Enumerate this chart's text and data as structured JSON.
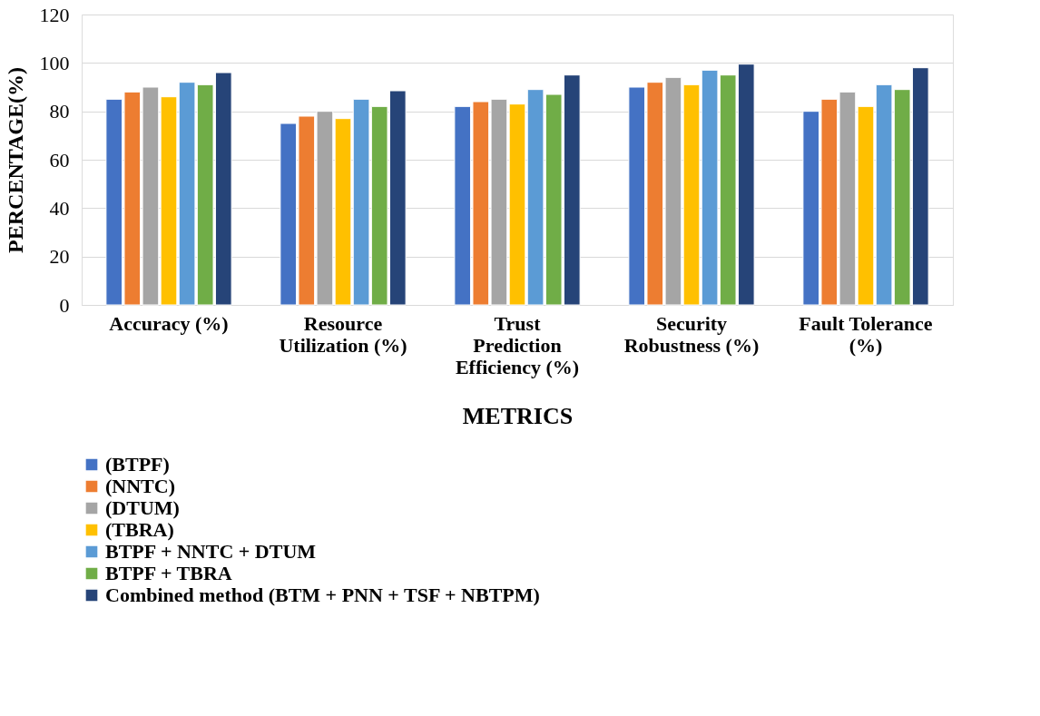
{
  "chart_data": {
    "type": "bar",
    "xlabel": "METRICS",
    "ylabel": "PERCENTAGE(%)",
    "categories": [
      "Accuracy (%)",
      "Resource Utilization (%)",
      "Trust Prediction Efficiency (%)",
      "Security Robustness (%)",
      "Fault Tolerance (%)"
    ],
    "series": [
      {
        "name": "(BTPF)",
        "color": "#4472c4",
        "values": [
          85,
          75,
          82,
          90,
          80
        ]
      },
      {
        "name": "(NNTC)",
        "color": "#ed7d31",
        "values": [
          88,
          78,
          84,
          92,
          85
        ]
      },
      {
        "name": "(DTUM)",
        "color": "#a5a5a5",
        "values": [
          90,
          80,
          85,
          94,
          88
        ]
      },
      {
        "name": "(TBRA)",
        "color": "#ffc000",
        "values": [
          86,
          77,
          83,
          91,
          82
        ]
      },
      {
        "name": "BTPF + NNTC + DTUM",
        "color": "#5b9bd5",
        "values": [
          92,
          85,
          89,
          97,
          91
        ]
      },
      {
        "name": "BTPF + TBRA",
        "color": "#70ad47",
        "values": [
          91,
          82,
          87,
          95,
          89
        ]
      },
      {
        "name": "Combined method (BTM + PNN + TSF + NBTPM)",
        "color": "#264478",
        "values": [
          96,
          88.5,
          95,
          99.5,
          98
        ]
      }
    ],
    "ylim": [
      0,
      120
    ],
    "yticks": [
      0,
      20,
      40,
      60,
      80,
      100,
      120
    ],
    "grid": "y",
    "legend": "bottom"
  }
}
